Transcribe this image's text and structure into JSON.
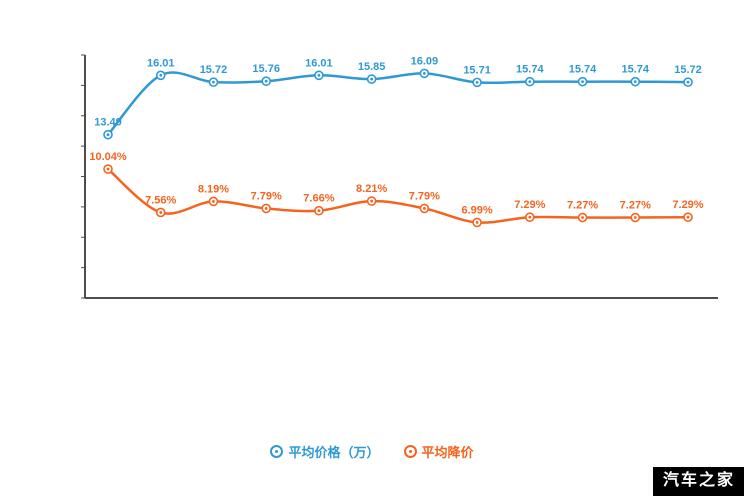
{
  "chart_data": {
    "type": "line",
    "title": "",
    "x_count": 12,
    "x_labels": [],
    "grid": false,
    "legend_position": "bottom",
    "series": [
      {
        "key": "avg-price",
        "name": "平均价格（万）",
        "color": "#2f99d4",
        "unit": "万",
        "ylim_hint": [
          13.2,
          16.3
        ],
        "values": [
          13.49,
          16.01,
          15.72,
          15.76,
          16.01,
          15.85,
          16.09,
          15.71,
          15.74,
          15.74,
          15.74,
          15.72
        ],
        "labels": [
          "13.49",
          "16.01",
          "15.72",
          "15.76",
          "16.01",
          "15.85",
          "16.09",
          "15.71",
          "15.74",
          "15.74",
          "15.74",
          "15.72"
        ]
      },
      {
        "key": "avg-discount",
        "name": "平均降价",
        "color": "#f5641e",
        "unit": "%",
        "ylim_hint": [
          6.8,
          10.2
        ],
        "values": [
          10.04,
          7.56,
          8.19,
          7.79,
          7.66,
          8.21,
          7.79,
          6.99,
          7.29,
          7.27,
          7.27,
          7.29
        ],
        "labels": [
          "10.04%",
          "7.56%",
          "8.19%",
          "7.79%",
          "7.66%",
          "8.21%",
          "7.79%",
          "6.99%",
          "7.29%",
          "7.27%",
          "7.27%",
          "7.29%"
        ]
      }
    ],
    "legend": [
      "平均价格（万）",
      "平均降价"
    ]
  },
  "watermark": {
    "text": "汽车之家"
  }
}
